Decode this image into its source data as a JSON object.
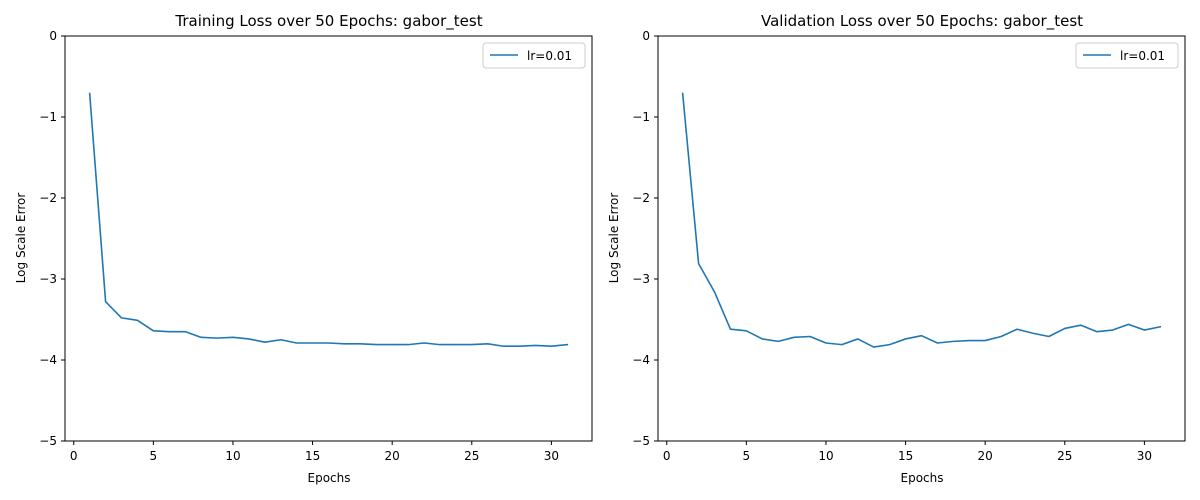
{
  "chart_data": [
    {
      "type": "line",
      "title": "Training Loss over 50 Epochs: gabor_test",
      "xlabel": "Epochs",
      "ylabel": "Log Scale Error",
      "xlim": [
        -0.55,
        32.55
      ],
      "ylim": [
        -5,
        0
      ],
      "xticks": [
        0,
        5,
        10,
        15,
        20,
        25,
        30
      ],
      "yticks": [
        0,
        -1,
        -2,
        -3,
        -4,
        -5
      ],
      "xtick_labels": [
        "0",
        "5",
        "10",
        "15",
        "20",
        "25",
        "30"
      ],
      "ytick_labels": [
        "0",
        "−1",
        "−2",
        "−3",
        "−4",
        "−5"
      ],
      "grid": false,
      "legend_position": "top-right",
      "x": [
        1,
        2,
        3,
        4,
        5,
        6,
        7,
        8,
        9,
        10,
        11,
        12,
        13,
        14,
        15,
        16,
        17,
        18,
        19,
        20,
        21,
        22,
        23,
        24,
        25,
        26,
        27,
        28,
        29,
        30,
        31
      ],
      "series": [
        {
          "name": "lr=0.01",
          "color": "#1f77b4",
          "values": [
            -0.71,
            -3.28,
            -3.48,
            -3.51,
            -3.64,
            -3.65,
            -3.65,
            -3.72,
            -3.73,
            -3.72,
            -3.74,
            -3.78,
            -3.75,
            -3.79,
            -3.79,
            -3.79,
            -3.8,
            -3.8,
            -3.81,
            -3.81,
            -3.81,
            -3.79,
            -3.81,
            -3.81,
            -3.81,
            -3.8,
            -3.83,
            -3.83,
            -3.82,
            -3.83,
            -3.81
          ]
        }
      ]
    },
    {
      "type": "line",
      "title": "Validation Loss over 50 Epochs: gabor_test",
      "xlabel": "Epochs",
      "ylabel": "Log Scale Error",
      "xlim": [
        -0.55,
        32.55
      ],
      "ylim": [
        -5,
        0
      ],
      "xticks": [
        0,
        5,
        10,
        15,
        20,
        25,
        30
      ],
      "yticks": [
        0,
        -1,
        -2,
        -3,
        -4,
        -5
      ],
      "xtick_labels": [
        "0",
        "5",
        "10",
        "15",
        "20",
        "25",
        "30"
      ],
      "ytick_labels": [
        "0",
        "−1",
        "−2",
        "−3",
        "−4",
        "−5"
      ],
      "grid": false,
      "legend_position": "top-right",
      "x": [
        1,
        2,
        3,
        4,
        5,
        6,
        7,
        8,
        9,
        10,
        11,
        12,
        13,
        14,
        15,
        16,
        17,
        18,
        19,
        20,
        21,
        22,
        23,
        24,
        25,
        26,
        27,
        28,
        29,
        30,
        31
      ],
      "series": [
        {
          "name": "lr=0.01",
          "color": "#1f77b4",
          "values": [
            -0.71,
            -2.81,
            -3.16,
            -3.62,
            -3.64,
            -3.74,
            -3.77,
            -3.72,
            -3.71,
            -3.79,
            -3.81,
            -3.74,
            -3.84,
            -3.81,
            -3.74,
            -3.7,
            -3.79,
            -3.77,
            -3.76,
            -3.76,
            -3.71,
            -3.62,
            -3.67,
            -3.71,
            -3.61,
            -3.57,
            -3.65,
            -3.63,
            -3.56,
            -3.63,
            -3.59
          ]
        }
      ]
    }
  ]
}
